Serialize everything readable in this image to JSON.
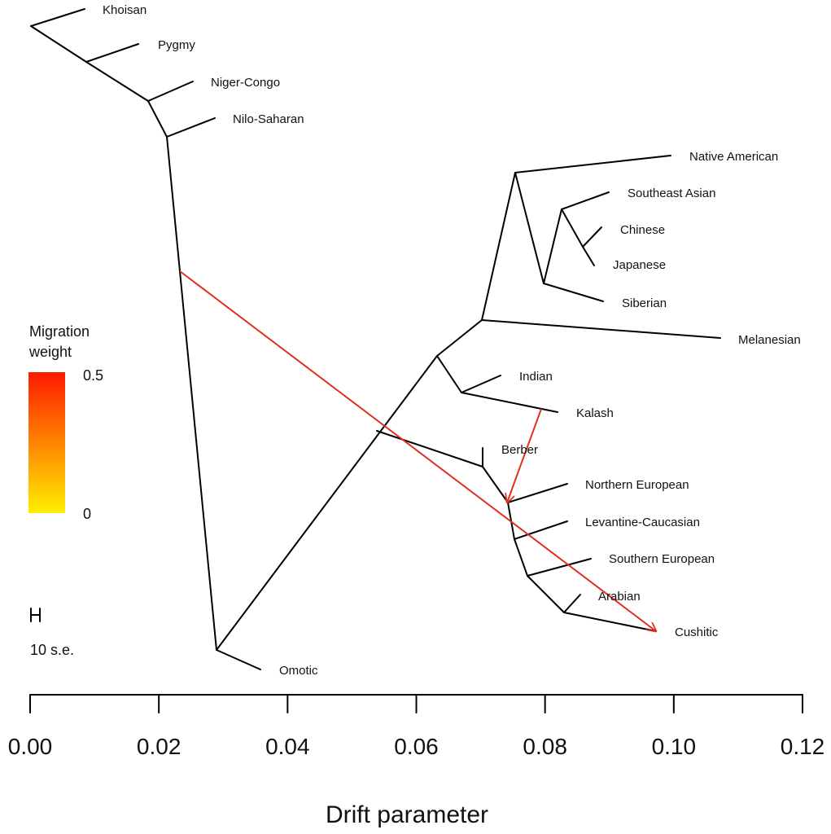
{
  "xlabel": "Drift parameter",
  "axis": {
    "min": 0,
    "max": 0.12,
    "ticks": [
      "0.00",
      "0.02",
      "0.04",
      "0.06",
      "0.08",
      "0.10",
      "0.12"
    ]
  },
  "legend": {
    "title_line1": "Migration",
    "title_line2": "weight",
    "max_label": "0.5",
    "min_label": "0",
    "color_high": "#ff1a00",
    "color_low": "#ffee00"
  },
  "scale": {
    "label": "10 s.e."
  },
  "populations": {
    "khoisan": "Khoisan",
    "pygmy": "Pygmy",
    "niger_congo": "Niger-Congo",
    "nilo_saharan": "Nilo-Saharan",
    "native_american": "Native American",
    "southeast_asian": "Southeast Asian",
    "chinese": "Chinese",
    "japanese": "Japanese",
    "siberian": "Siberian",
    "melanesian": "Melanesian",
    "indian": "Indian",
    "kalash": "Kalash",
    "berber": "Berber",
    "northern_european": "Northern European",
    "levantine_caucasian": "Levantine-Caucasian",
    "southern_european": "Southern European",
    "arabian": "Arabian",
    "cushitic": "Cushitic",
    "omotic": "Omotic"
  },
  "colors": {
    "branch": "#000000",
    "migration": "#e0301e"
  }
}
